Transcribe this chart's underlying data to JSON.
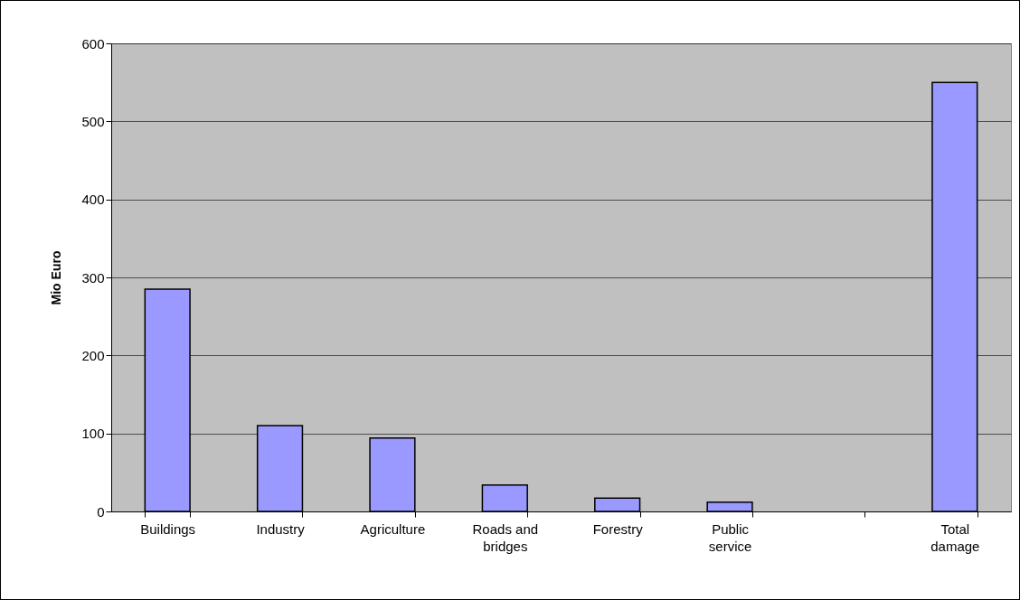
{
  "chart_data": {
    "type": "bar",
    "ylabel": "Mio Euro",
    "categories": [
      "Buildings",
      "Industry",
      "Agriculture",
      "Roads and bridges",
      "Forestry",
      "Public service",
      null,
      "Total damage"
    ],
    "values": [
      285,
      110,
      94,
      34,
      17,
      12,
      null,
      550
    ],
    "color": "#9999ff",
    "ylim": [
      0,
      600
    ],
    "yticks": [
      0,
      100,
      200,
      300,
      400,
      500,
      600
    ],
    "grid": "y"
  }
}
